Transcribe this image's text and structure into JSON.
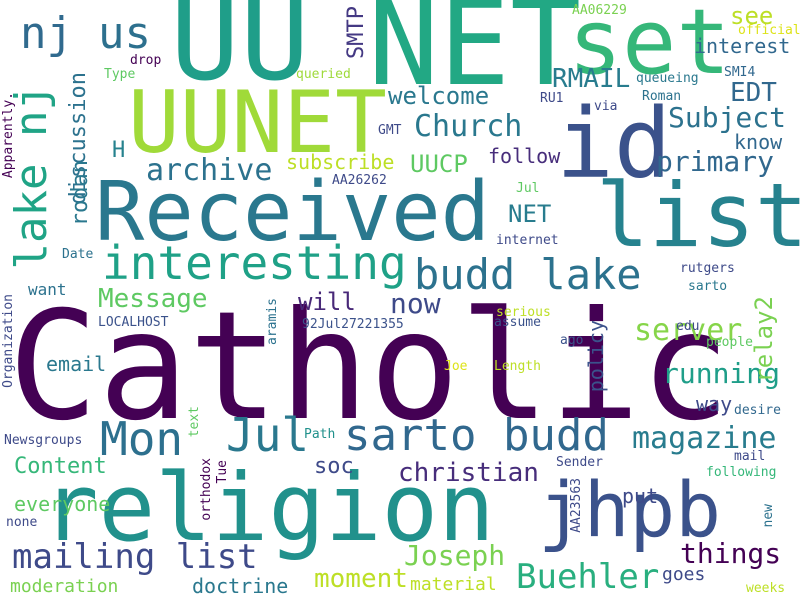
{
  "word_cloud": {
    "words": [
      {
        "text": "Catholic",
        "color": "#440154"
      },
      {
        "text": "NET",
        "color": "#22a884"
      },
      {
        "text": "UU",
        "color": "#1f9e89"
      },
      {
        "text": "set",
        "color": "#35b779"
      },
      {
        "text": "Received",
        "color": "#2a788e"
      },
      {
        "text": "religion",
        "color": "#21918c"
      },
      {
        "text": "list",
        "color": "#26828e"
      },
      {
        "text": "UUNET",
        "color": "#a0da39"
      },
      {
        "text": "id",
        "color": "#3b528b"
      },
      {
        "text": "jhpb",
        "color": "#3b528b"
      },
      {
        "text": "interesting",
        "color": "#1fa187"
      },
      {
        "text": "budd lake",
        "color": "#2c728e"
      },
      {
        "text": "sarto budd",
        "color": "#31688e"
      },
      {
        "text": "lake nj",
        "color": "#20a486"
      },
      {
        "text": "nj",
        "color": "#306a8e"
      },
      {
        "text": "us",
        "color": "#2d708e"
      },
      {
        "text": "Jul",
        "color": "#2a788e"
      },
      {
        "text": "Mon",
        "color": "#2d708e"
      },
      {
        "text": "mailing list",
        "color": "#3e4a89"
      },
      {
        "text": "Buehler",
        "color": "#29af7f"
      },
      {
        "text": "things",
        "color": "#440154"
      },
      {
        "text": "magazine",
        "color": "#287c8e"
      },
      {
        "text": "archive",
        "color": "#2c728e"
      },
      {
        "text": "Church",
        "color": "#2a788e"
      },
      {
        "text": "server",
        "color": "#86d549"
      },
      {
        "text": "primary",
        "color": "#31688e"
      },
      {
        "text": "running",
        "color": "#1f9e89"
      },
      {
        "text": "now",
        "color": "#3e4a89"
      },
      {
        "text": "Subject",
        "color": "#2c728e"
      },
      {
        "text": "Message",
        "color": "#5ec962"
      },
      {
        "text": "Joseph",
        "color": "#7ad151"
      },
      {
        "text": "christian",
        "color": "#472d7b"
      },
      {
        "text": "moment",
        "color": "#bddf26"
      },
      {
        "text": "welcome",
        "color": "#2a788e"
      },
      {
        "text": "RMAIL",
        "color": "#287c8e"
      },
      {
        "text": "EDT",
        "color": "#31688e"
      },
      {
        "text": "see",
        "color": "#bddf26"
      },
      {
        "text": "interest",
        "color": "#31688e"
      },
      {
        "text": "discussion",
        "color": "#2c728e"
      },
      {
        "text": "rodan",
        "color": "#2a788e"
      },
      {
        "text": "SMTP",
        "color": "#443983"
      },
      {
        "text": "relay2",
        "color": "#7ad151"
      },
      {
        "text": "UUCP",
        "color": "#5ec962"
      },
      {
        "text": "NET",
        "color": "#287c8e"
      },
      {
        "text": "will",
        "color": "#482878"
      },
      {
        "text": "H",
        "color": "#26828e"
      },
      {
        "text": "soc",
        "color": "#3e4a89"
      },
      {
        "text": "Content",
        "color": "#35b779"
      },
      {
        "text": "follow",
        "color": "#472d7b"
      },
      {
        "text": "subscribe",
        "color": "#bddf26"
      },
      {
        "text": "know",
        "color": "#31688e"
      },
      {
        "text": "email",
        "color": "#2a788e"
      },
      {
        "text": "everyone",
        "color": "#5ec962"
      },
      {
        "text": "policy",
        "color": "#3b528b"
      },
      {
        "text": "way",
        "color": "#3e4a89"
      },
      {
        "text": "put",
        "color": "#3e4a89"
      },
      {
        "text": "goes",
        "color": "#3e4a89"
      },
      {
        "text": "doctrine",
        "color": "#2a788e"
      },
      {
        "text": "moderation",
        "color": "#7ad151"
      },
      {
        "text": "material",
        "color": "#bddf26"
      },
      {
        "text": "want",
        "color": "#2c728e"
      },
      {
        "text": "AA06229",
        "color": "#7ad151"
      },
      {
        "text": "official",
        "color": "#dde318"
      },
      {
        "text": "drop",
        "color": "#440154"
      },
      {
        "text": "Type",
        "color": "#5ec962"
      },
      {
        "text": "queried",
        "color": "#9fda3a"
      },
      {
        "text": "queueing",
        "color": "#2a788e"
      },
      {
        "text": "SMI4",
        "color": "#31688e"
      },
      {
        "text": "Apparently.",
        "color": "#440154"
      },
      {
        "text": "RU1",
        "color": "#3e4a89"
      },
      {
        "text": "via",
        "color": "#3e4a89"
      },
      {
        "text": "Roman",
        "color": "#2c728e"
      },
      {
        "text": "GMT",
        "color": "#3e4a89"
      },
      {
        "text": "AA26262",
        "color": "#3e4a89"
      },
      {
        "text": "Jul",
        "color": "#5ec962"
      },
      {
        "text": "internet",
        "color": "#3e4a89"
      },
      {
        "text": "Date",
        "color": "#2c728e"
      },
      {
        "text": "rutgers",
        "color": "#3e4a89"
      },
      {
        "text": "sarto",
        "color": "#2a788e"
      },
      {
        "text": "LOCALHOST",
        "color": "#3b528b"
      },
      {
        "text": "92Jul27221355",
        "color": "#3b528b"
      },
      {
        "text": "serious",
        "color": "#bddf26"
      },
      {
        "text": "assume",
        "color": "#3b528b"
      },
      {
        "text": "edu",
        "color": "#3e4a89"
      },
      {
        "text": "Organization",
        "color": "#3e4a89"
      },
      {
        "text": "aramis",
        "color": "#2c728e"
      },
      {
        "text": "Length",
        "color": "#bddf26"
      },
      {
        "text": "ago",
        "color": "#3b528b"
      },
      {
        "text": "people",
        "color": "#5ec962"
      },
      {
        "text": "Joe",
        "color": "#dde318"
      },
      {
        "text": "desire",
        "color": "#31688e"
      },
      {
        "text": "Newsgroups",
        "color": "#3e4a89"
      },
      {
        "text": "Path",
        "color": "#21918c"
      },
      {
        "text": "text",
        "color": "#5ec962"
      },
      {
        "text": "mail",
        "color": "#3e4a89"
      },
      {
        "text": "orthodox",
        "color": "#440154"
      },
      {
        "text": "Sender",
        "color": "#3e4a89"
      },
      {
        "text": "Tue",
        "color": "#440154"
      },
      {
        "text": "following",
        "color": "#35b779"
      },
      {
        "text": "AA23563",
        "color": "#3e4a89"
      },
      {
        "text": "new",
        "color": "#2c728e"
      },
      {
        "text": "none",
        "color": "#3e4a89"
      },
      {
        "text": "weeks",
        "color": "#bddf26"
      }
    ]
  }
}
